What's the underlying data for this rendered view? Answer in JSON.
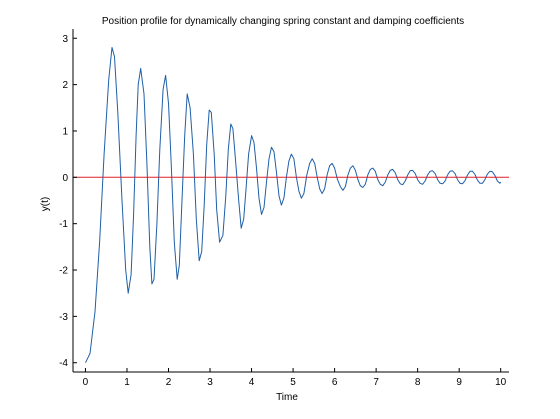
{
  "chart_data": {
    "type": "line",
    "title": "Position profile for dynamically changing spring constant and damping coefficients",
    "xlabel": "Time",
    "ylabel": "y(t)",
    "xlim": [
      -0.3,
      10.2
    ],
    "ylim": [
      -4.2,
      3.2
    ],
    "xticks": [
      "0",
      "1",
      "2",
      "3",
      "4",
      "5",
      "6",
      "7",
      "8",
      "9",
      "10"
    ],
    "yticks": [
      "-4",
      "-3",
      "-2",
      "-1",
      "0",
      "1",
      "2",
      "3"
    ],
    "grid": false,
    "legend": "none",
    "series": [
      {
        "color": "#1f5fa8",
        "x": [
          0.0,
          0.11,
          0.23,
          0.34,
          0.45,
          0.56,
          0.64,
          0.7,
          0.78,
          0.88,
          0.97,
          1.03,
          1.1,
          1.16,
          1.22,
          1.27,
          1.33,
          1.41,
          1.48,
          1.55,
          1.6,
          1.65,
          1.72,
          1.79,
          1.87,
          1.93,
          2.0,
          2.07,
          2.14,
          2.21,
          2.26,
          2.32,
          2.39,
          2.45,
          2.52,
          2.6,
          2.67,
          2.74,
          2.8,
          2.86,
          2.92,
          2.98,
          3.03,
          3.1,
          3.16,
          3.23,
          3.31,
          3.38,
          3.44,
          3.5,
          3.55,
          3.62,
          3.69,
          3.75,
          3.81,
          3.87,
          3.93,
          4.0,
          4.06,
          4.12,
          4.18,
          4.24,
          4.3,
          4.36,
          4.42,
          4.48,
          4.54,
          4.6,
          4.66,
          4.72,
          4.78,
          4.84,
          4.9,
          4.96,
          5.02,
          5.08,
          5.14,
          5.2,
          5.26,
          5.33,
          5.4,
          5.46,
          5.52,
          5.58,
          5.64,
          5.7,
          5.76,
          5.82,
          5.88,
          5.94,
          6.0,
          6.07,
          6.14,
          6.2,
          6.26,
          6.32,
          6.38,
          6.44,
          6.5,
          6.56,
          6.62,
          6.68,
          6.74,
          6.8,
          6.86,
          6.92,
          6.98,
          7.04,
          7.1,
          7.16,
          7.22,
          7.28,
          7.34,
          7.4,
          7.46,
          7.52,
          7.58,
          7.64,
          7.7,
          7.76,
          7.82,
          7.88,
          7.94,
          8.0,
          8.06,
          8.12,
          8.18,
          8.24,
          8.3,
          8.36,
          8.42,
          8.48,
          8.54,
          8.6,
          8.66,
          8.72,
          8.78,
          8.84,
          8.9,
          8.96,
          9.02,
          9.08,
          9.14,
          9.2,
          9.26,
          9.32,
          9.38,
          9.44,
          9.5,
          9.56,
          9.62,
          9.68,
          9.74,
          9.8,
          9.86,
          9.92,
          9.98,
          10.0
        ],
        "y": [
          -4.0,
          -3.8,
          -2.9,
          -1.4,
          0.5,
          2.1,
          2.8,
          2.6,
          1.4,
          -0.5,
          -2.0,
          -2.5,
          -2.1,
          -0.8,
          0.9,
          2.0,
          2.35,
          1.8,
          0.3,
          -1.5,
          -2.3,
          -2.2,
          -1.0,
          0.6,
          1.9,
          2.2,
          1.6,
          0.2,
          -1.4,
          -2.2,
          -1.9,
          -0.6,
          0.9,
          1.8,
          1.5,
          0.5,
          -0.9,
          -1.8,
          -1.6,
          -0.6,
          0.7,
          1.45,
          1.4,
          0.5,
          -0.7,
          -1.4,
          -1.25,
          -0.4,
          0.6,
          1.15,
          1.05,
          0.3,
          -0.5,
          -1.1,
          -0.9,
          -0.2,
          0.5,
          0.9,
          0.75,
          0.2,
          -0.45,
          -0.8,
          -0.65,
          -0.1,
          0.4,
          0.65,
          0.55,
          0.1,
          -0.4,
          -0.6,
          -0.45,
          0.0,
          0.35,
          0.5,
          0.4,
          0.0,
          -0.3,
          -0.45,
          -0.35,
          0.05,
          0.3,
          0.4,
          0.3,
          0.0,
          -0.25,
          -0.35,
          -0.25,
          0.05,
          0.25,
          0.3,
          0.2,
          -0.05,
          -0.2,
          -0.28,
          -0.2,
          0.05,
          0.2,
          0.25,
          0.15,
          -0.05,
          -0.18,
          -0.22,
          -0.15,
          0.05,
          0.17,
          0.2,
          0.13,
          -0.05,
          -0.15,
          -0.18,
          -0.1,
          0.05,
          0.15,
          0.17,
          0.1,
          -0.05,
          -0.14,
          -0.16,
          -0.08,
          0.05,
          0.14,
          0.15,
          0.08,
          -0.05,
          -0.13,
          -0.15,
          -0.08,
          0.05,
          0.13,
          0.14,
          0.08,
          -0.05,
          -0.13,
          -0.14,
          -0.08,
          0.05,
          0.13,
          0.14,
          0.08,
          -0.05,
          -0.13,
          -0.14,
          -0.07,
          0.05,
          0.13,
          0.13,
          0.06,
          -0.06,
          -0.13,
          -0.13,
          -0.05,
          0.07,
          0.13,
          0.12,
          0.04,
          -0.08,
          -0.13,
          -0.1
        ]
      },
      {
        "color": "#e0202a",
        "x": [
          -0.3,
          10.2
        ],
        "y": [
          0,
          0
        ]
      }
    ]
  }
}
